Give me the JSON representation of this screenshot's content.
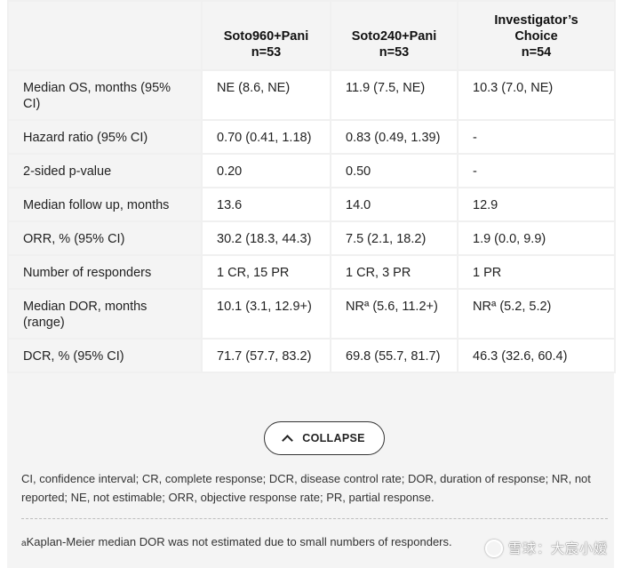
{
  "table": {
    "headers": [
      "",
      [
        "Soto960+Pani",
        "n=53"
      ],
      [
        "Soto240+Pani",
        "n=53"
      ],
      [
        "Investigator’s",
        "Choice",
        "n=54"
      ]
    ],
    "rows": [
      {
        "label": "Median OS, months (95% CI)",
        "cells": [
          "NE (8.6, NE)",
          "11.9 (7.5, NE)",
          "10.3 (7.0, NE)"
        ]
      },
      {
        "label": "Hazard ratio (95% CI)",
        "cells": [
          "0.70 (0.41, 1.18)",
          "0.83 (0.49, 1.39)",
          "-"
        ]
      },
      {
        "label": "2-sided p-value",
        "cells": [
          "0.20",
          "0.50",
          "-"
        ]
      },
      {
        "label": "Median follow up, months",
        "cells": [
          "13.6",
          "14.0",
          "12.9"
        ]
      },
      {
        "label": "ORR, % (95% CI)",
        "cells": [
          "30.2 (18.3, 44.3)",
          "7.5 (2.1, 18.2)",
          "1.9 (0.0, 9.9)"
        ]
      },
      {
        "label": "Number of responders",
        "cells": [
          "1 CR, 15 PR",
          "1 CR, 3 PR",
          "1 PR"
        ]
      },
      {
        "label": "Median DOR, months (range)",
        "cells": [
          "10.1 (3.1, 12.9+)",
          "NRª (5.6, 11.2+)",
          "NRª (5.2, 5.2)"
        ]
      },
      {
        "label": "DCR, % (95% CI)",
        "cells": [
          "71.7 (57.7, 83.2)",
          "69.8 (55.7, 81.7)",
          "46.3 (32.6, 60.4)"
        ]
      }
    ]
  },
  "collapse_button": {
    "label": "COLLAPSE"
  },
  "footnotes": {
    "abbreviations": "CI, confidence interval; CR, complete response; DCR, disease control rate; DOR, duration of response; NR, not reported; NE, not estimable; ORR, objective response rate; PR, partial response.",
    "note_marker": "a",
    "note": "Kaplan-Meier median DOR was not estimated due to small numbers of responders."
  },
  "watermark": {
    "text": "雪球：大宸小嫒"
  },
  "icons": {
    "collapse": "chevron-up-icon",
    "watermark_logo": "snowball-logo-icon"
  }
}
